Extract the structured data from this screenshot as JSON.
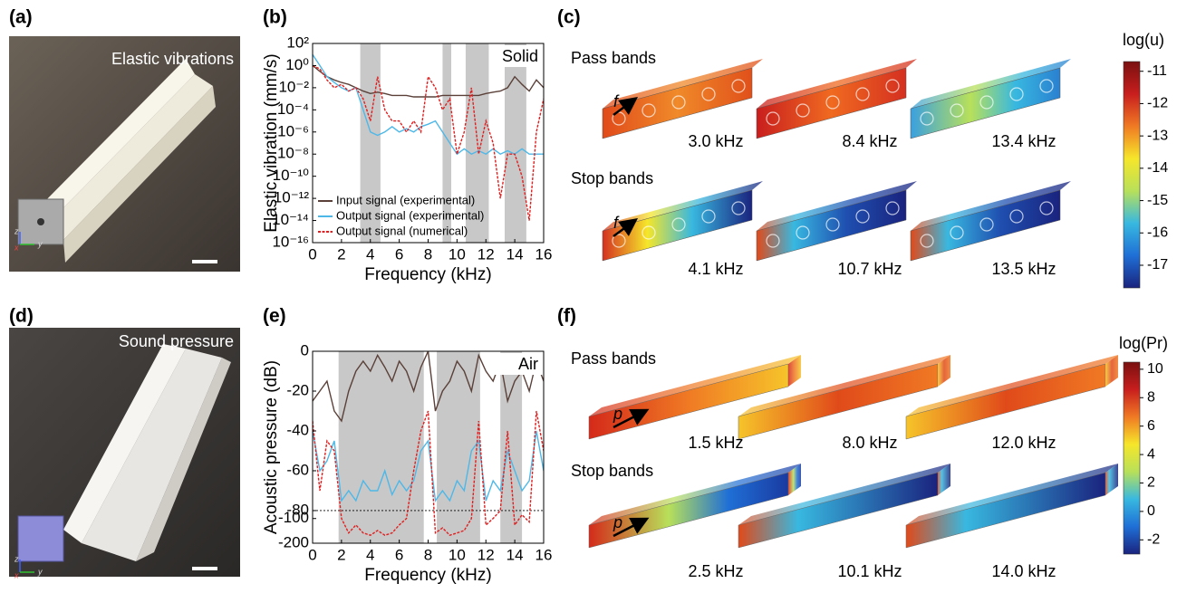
{
  "panel_labels": [
    "(a)",
    "(b)",
    "(c)",
    "(d)",
    "(e)",
    "(f)"
  ],
  "photos": [
    {
      "caption": "Elastic vibrations",
      "axes": [
        "z",
        "x",
        "y"
      ]
    },
    {
      "caption": "Sound pressure",
      "axes": [
        "z",
        "x",
        "y"
      ]
    }
  ],
  "chart_data": [
    {
      "type": "line",
      "annotation": "Solid",
      "xlabel": "Frequency (kHz)",
      "ylabel": "Elastic vibration (mm/s)",
      "x": [
        0,
        0.5,
        1,
        1.5,
        2,
        2.5,
        3,
        3.5,
        4,
        4.5,
        5,
        5.5,
        6,
        6.5,
        7,
        7.5,
        8,
        8.5,
        9,
        9.5,
        10,
        10.5,
        11,
        11.5,
        12,
        12.5,
        13,
        13.5,
        14,
        14.5,
        15,
        15.5,
        16
      ],
      "series": [
        {
          "name": "Input signal (experimental)",
          "color": "#5a4038",
          "dash": false,
          "values": [
            1,
            0.3,
            0.1,
            0.05,
            0.03,
            0.02,
            0.01,
            0.005,
            0.003,
            0.004,
            0.003,
            0.002,
            0.002,
            0.002,
            0.0015,
            0.0015,
            0.0015,
            0.0015,
            0.002,
            0.002,
            0.002,
            0.002,
            0.002,
            0.002,
            0.003,
            0.004,
            0.005,
            0.01,
            0.1,
            0.02,
            0.005,
            0.05,
            0.01
          ]
        },
        {
          "name": "Output signal (experimental)",
          "color": "#4db8e8",
          "dash": false,
          "values": [
            10,
            1,
            0.1,
            0.03,
            0.01,
            0.005,
            0.01,
            0.0001,
            1e-06,
            5e-07,
            1e-06,
            3e-06,
            1e-06,
            2e-06,
            1e-06,
            3e-06,
            5e-06,
            1e-05,
            1e-06,
            1e-07,
            1e-08,
            3e-08,
            1e-08,
            2e-08,
            1e-08,
            3e-08,
            1e-08,
            2e-08,
            1e-08,
            3e-08,
            1e-08,
            1e-08,
            1e-08
          ]
        },
        {
          "name": "Output signal (numerical)",
          "color": "#e02020",
          "dash": true,
          "values": [
            1,
            0.5,
            0.05,
            0.01,
            0.02,
            0.005,
            0.01,
            0.001,
            1e-05,
            0.1,
            0.0001,
            1e-05,
            1e-05,
            1e-06,
            1e-05,
            1e-06,
            0.1,
            0.01,
            0.0001,
            0.001,
            1e-08,
            1e-06,
            0.01,
            1e-08,
            1e-05,
            1e-07,
            1e-12,
            1e-08,
            1e-08,
            1e-10,
            1e-14,
            1e-06,
            0.001
          ]
        }
      ],
      "shaded_bands": [
        [
          3.3,
          4.7
        ],
        [
          9.0,
          9.6
        ],
        [
          10.6,
          12.2
        ],
        [
          13.3,
          14.8
        ]
      ],
      "xlim": [
        0,
        16
      ],
      "xticks": [
        0,
        2,
        4,
        6,
        8,
        10,
        12,
        14,
        16
      ],
      "ylim": [
        1e-16,
        100
      ],
      "ylog": true,
      "yticks": [
        {
          "value": 100,
          "label": "10²"
        },
        {
          "value": 1,
          "label": "10⁰"
        },
        {
          "value": 0.01,
          "label": "10⁻²"
        },
        {
          "value": 0.0001,
          "label": "10⁻⁴"
        },
        {
          "value": 1e-06,
          "label": "10⁻⁶"
        },
        {
          "value": 1e-08,
          "label": "10⁻⁸"
        },
        {
          "value": 1e-10,
          "label": "10⁻¹⁰"
        },
        {
          "value": 1e-12,
          "label": "10⁻¹²"
        },
        {
          "value": 1e-14,
          "label": "10⁻¹⁴"
        },
        {
          "value": 1e-16,
          "label": "10⁻¹⁶"
        }
      ],
      "legend": "lower left"
    },
    {
      "type": "line",
      "annotation": "Air",
      "xlabel": "Frequency (kHz)",
      "ylabel": "Acoustic pressure (dB)",
      "x": [
        0,
        0.5,
        1,
        1.5,
        2,
        2.5,
        3,
        3.5,
        4,
        4.5,
        5,
        5.5,
        6,
        6.5,
        7,
        7.5,
        8,
        8.5,
        9,
        9.5,
        10,
        10.5,
        11,
        11.5,
        12,
        12.5,
        13,
        13.5,
        14,
        14.5,
        15,
        15.5,
        16
      ],
      "series": [
        {
          "color": "#5a4038",
          "dash": false,
          "values": [
            -25,
            -20,
            -15,
            -30,
            -35,
            -20,
            -10,
            -5,
            -10,
            -2,
            -8,
            -15,
            -5,
            -10,
            -20,
            -8,
            0,
            -30,
            -20,
            -15,
            -5,
            -10,
            -20,
            -2,
            -10,
            -15,
            -5,
            -25,
            -15,
            -10,
            -20,
            -5,
            -15
          ]
        },
        {
          "color": "#4db8e8",
          "dash": false,
          "values": [
            -40,
            -60,
            -55,
            -45,
            -75,
            -70,
            -75,
            -65,
            -70,
            -70,
            -60,
            -72,
            -65,
            -70,
            -65,
            -50,
            -45,
            -75,
            -70,
            -75,
            -65,
            -70,
            -50,
            -45,
            -75,
            -65,
            -70,
            -50,
            -60,
            -70,
            -65,
            -40,
            -60
          ]
        },
        {
          "color": "#e02020",
          "dash": true,
          "values": [
            -35,
            -70,
            -45,
            -50,
            -100,
            -150,
            -120,
            -150,
            -160,
            -140,
            -160,
            -150,
            -120,
            -100,
            -60,
            -40,
            -30,
            -150,
            -130,
            -160,
            -150,
            -140,
            -100,
            -35,
            -120,
            -100,
            -80,
            -40,
            -120,
            -90,
            -110,
            -30,
            -50
          ]
        }
      ],
      "shaded_bands": [
        [
          1.8,
          7.7
        ],
        [
          8.6,
          11.6
        ],
        [
          13.0,
          14.5
        ]
      ],
      "xlim": [
        0,
        16
      ],
      "xticks": [
        0,
        2,
        4,
        6,
        8,
        10,
        12,
        14,
        16
      ],
      "ylim": [
        -200,
        0
      ],
      "ybreak": -80,
      "yticks": [
        0,
        -20,
        -40,
        -60,
        -80,
        -100,
        -200
      ]
    }
  ],
  "simulations": [
    {
      "rows": [
        {
          "heading": "Pass bands",
          "arrow_label": "f",
          "frequencies": [
            "3.0 kHz",
            "8.4 kHz",
            "13.4 kHz"
          ]
        },
        {
          "heading": "Stop bands",
          "arrow_label": "f",
          "frequencies": [
            "4.1 kHz",
            "10.7 kHz",
            "13.5 kHz"
          ]
        }
      ],
      "colorbar": {
        "title": "log(u)",
        "lim": [
          -17.7,
          -10.7
        ],
        "ticks": [
          -11,
          -12,
          -13,
          -14,
          -15,
          -16,
          -17
        ],
        "colors": [
          "#1a237e",
          "#1f6fd6",
          "#38b8e0",
          "#b8e05a",
          "#f6e62a",
          "#f07a24",
          "#c81e1e",
          "#7a1010"
        ]
      }
    },
    {
      "rows": [
        {
          "heading": "Pass bands",
          "arrow_label": "p",
          "frequencies": [
            "1.5 kHz",
            "8.0 kHz",
            "12.0 kHz"
          ]
        },
        {
          "heading": "Stop bands",
          "arrow_label": "p",
          "frequencies": [
            "2.5 kHz",
            "10.1 kHz",
            "14.0 kHz"
          ]
        }
      ],
      "colorbar": {
        "title": "log(Pr)",
        "lim": [
          -3,
          10.5
        ],
        "ticks": [
          10,
          8,
          6,
          4,
          2,
          0,
          -2
        ],
        "colors": [
          "#1a237e",
          "#1f6fd6",
          "#38b8e0",
          "#b8e05a",
          "#f6e62a",
          "#f07a24",
          "#c81e1e",
          "#7a1010"
        ]
      }
    }
  ]
}
